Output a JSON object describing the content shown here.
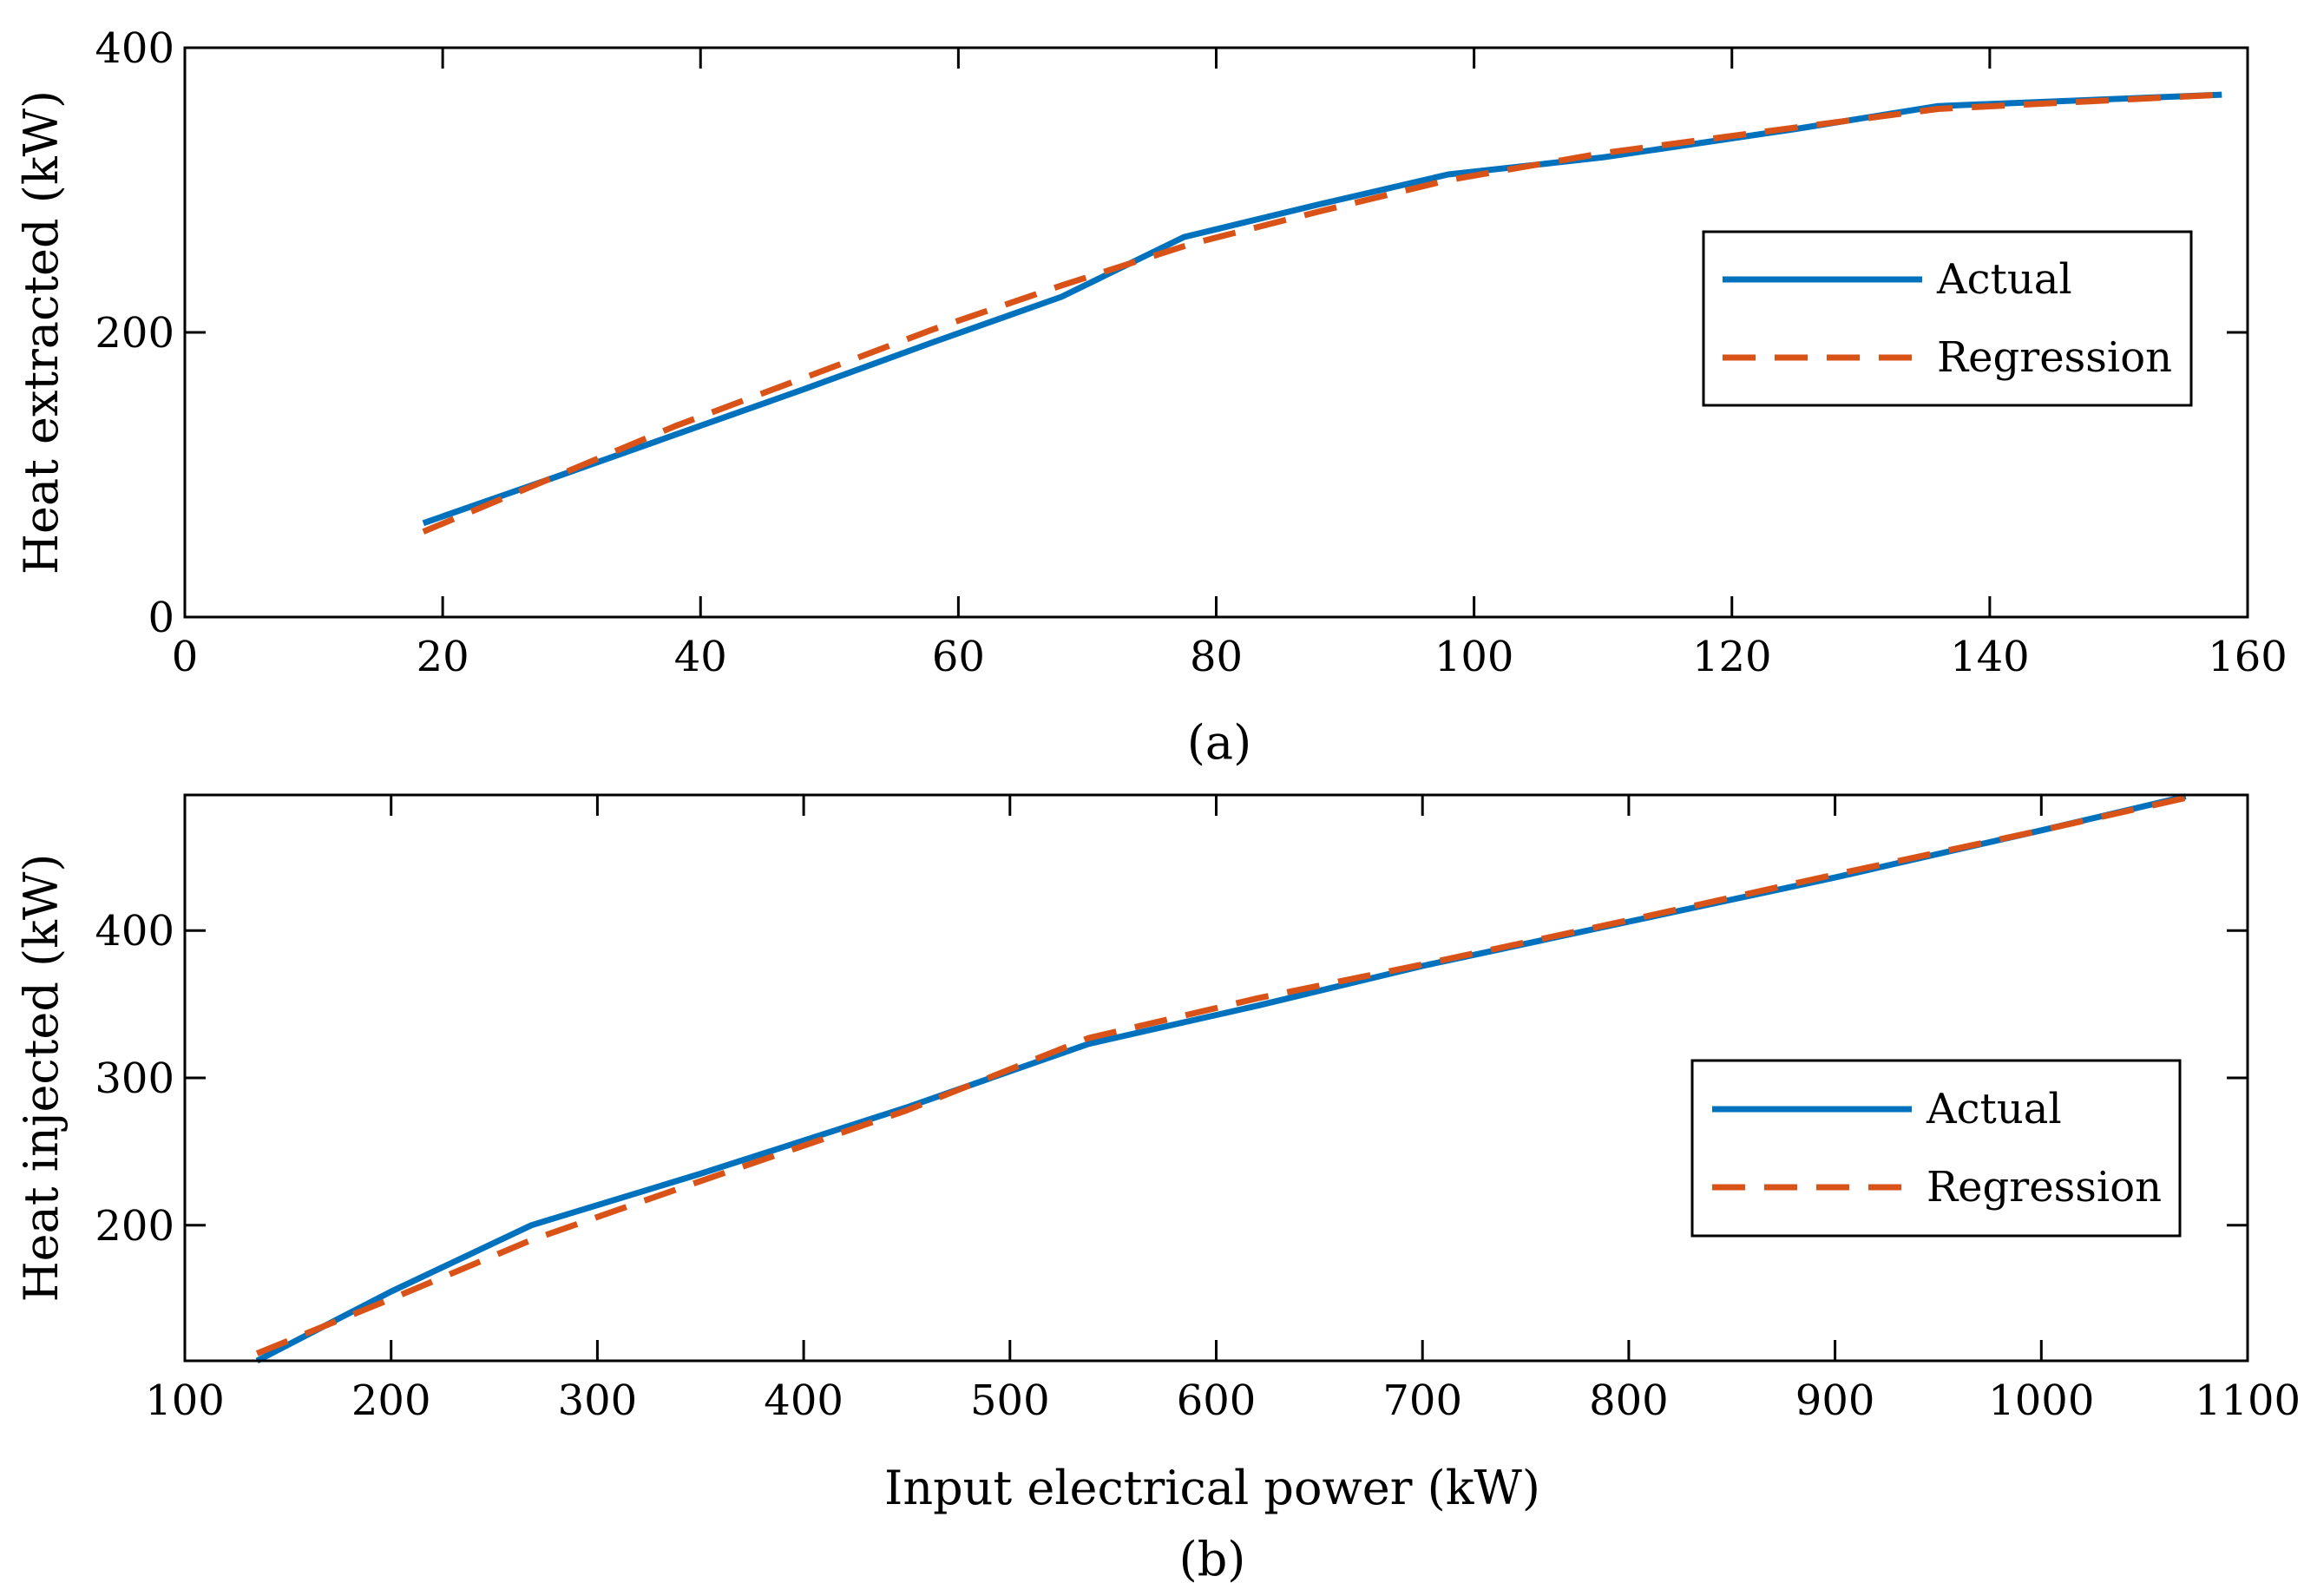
{
  "chart_data": [
    {
      "type": "line",
      "panel_label": "(a)",
      "title": "",
      "xlabel": "",
      "ylabel": "Heat extracted (kW)",
      "xlim": [
        0,
        160
      ],
      "ylim": [
        0,
        400
      ],
      "xticks": [
        0,
        20,
        40,
        60,
        80,
        100,
        120,
        140,
        160
      ],
      "yticks": [
        0,
        200,
        400
      ],
      "grid": false,
      "legend": "right",
      "series": [
        {
          "name": "Actual",
          "color": "#0072BD",
          "style": "solid",
          "x": [
            18.5,
            28,
            38,
            48,
            58,
            68,
            77.5,
            88,
            98,
            110,
            125,
            136,
            158
          ],
          "y": [
            66,
            96,
            128,
            160,
            193,
            225,
            267,
            290,
            311,
            323,
            343,
            359,
            367
          ]
        },
        {
          "name": "Regression",
          "color": "#D95319",
          "style": "dashed",
          "x": [
            18.5,
            28,
            38,
            48,
            58,
            68,
            78,
            88,
            98,
            110,
            125,
            136,
            158
          ],
          "y": [
            60,
            96,
            134,
            168,
            202,
            233,
            262,
            285,
            307,
            326,
            344,
            357,
            367
          ]
        }
      ]
    },
    {
      "type": "line",
      "panel_label": "(b)",
      "title": "",
      "xlabel": "Input electrical power (kW)",
      "ylabel": "Heat injected (kW)",
      "xlim": [
        100,
        1100
      ],
      "ylim": [
        108,
        492
      ],
      "xticks": [
        100,
        200,
        300,
        400,
        500,
        600,
        700,
        800,
        900,
        1000,
        1100
      ],
      "yticks": [
        200,
        300,
        400
      ],
      "grid": false,
      "legend": "right",
      "series": [
        {
          "name": "Actual",
          "color": "#0072BD",
          "style": "solid",
          "x": [
            135,
            200,
            268,
            350,
            450,
            538,
            620,
            700,
            800,
            900,
            1000,
            1070
          ],
          "y": [
            108,
            155,
            200,
            235,
            280,
            323,
            349,
            376,
            406,
            436,
            468,
            491
          ]
        },
        {
          "name": "Regression",
          "color": "#D95319",
          "style": "dashed",
          "x": [
            135,
            200,
            268,
            350,
            450,
            538,
            620,
            700,
            800,
            900,
            1000,
            1070
          ],
          "y": [
            113,
            150,
            190,
            230,
            278,
            327,
            354,
            377,
            407,
            438,
            468,
            490
          ]
        }
      ]
    }
  ]
}
